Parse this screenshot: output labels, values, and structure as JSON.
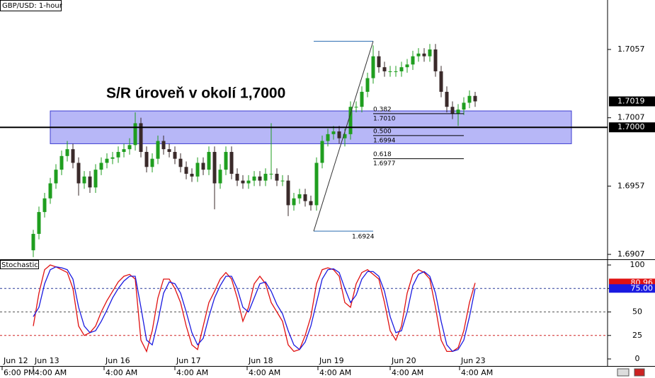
{
  "chart_data": [
    {
      "type": "candlestick",
      "title": "GBP/USD: 1-hour",
      "annotation": "S/R úroveň v okolí 1,7000",
      "up_color": "#1f9e1f",
      "down_color": "#3a2a2a",
      "open": [
        1.691,
        1.6922,
        1.6938,
        1.6948,
        1.6959,
        1.6969,
        1.6979,
        1.6984,
        1.6974,
        1.6959,
        1.6964,
        1.6956,
        1.6969,
        1.6974,
        1.6977,
        1.6978,
        1.6982,
        1.6984,
        1.6987,
        1.7003,
        1.6982,
        1.6971,
        1.6977,
        1.699,
        1.6984,
        1.6982,
        1.6977,
        1.6971,
        1.6966,
        1.6964,
        1.6974,
        1.6969,
        1.6982,
        1.6959,
        1.6969,
        1.6982,
        1.6966,
        1.6961,
        1.6959,
        1.6961,
        1.6964,
        1.6961,
        1.6966,
        1.6966,
        1.6961,
        1.6961,
        1.6943,
        1.6948,
        1.6951,
        1.6946,
        1.6943,
        1.6974,
        1.699,
        1.6995,
        1.6997,
        1.6992,
        1.6995,
        1.7015,
        1.7015,
        1.7026,
        1.7036,
        1.7052,
        1.7044,
        1.7041,
        1.7041,
        1.7041,
        1.7044,
        1.7046,
        1.7052,
        1.7054,
        1.7052,
        1.7057,
        1.7041,
        1.7026,
        1.7015,
        1.701,
        1.7013,
        1.7018,
        1.7023
      ],
      "high": [
        1.6925,
        1.6942,
        1.6952,
        1.6963,
        1.6973,
        1.6983,
        1.699,
        1.6988,
        1.6978,
        1.6968,
        1.6968,
        1.6973,
        1.6978,
        1.6981,
        1.6982,
        1.6986,
        1.6988,
        1.6992,
        1.7011,
        1.7007,
        1.6986,
        1.6981,
        1.6994,
        1.6994,
        1.6988,
        1.6986,
        1.6981,
        1.6975,
        1.697,
        1.6978,
        1.6978,
        1.6986,
        1.6986,
        1.6973,
        1.6986,
        1.6986,
        1.697,
        1.6965,
        1.6965,
        1.6968,
        1.6968,
        1.697,
        1.7003,
        1.697,
        1.6965,
        1.6965,
        1.6952,
        1.6955,
        1.6955,
        1.695,
        1.6978,
        1.6994,
        1.6999,
        1.7001,
        1.7001,
        1.6999,
        1.7019,
        1.7019,
        1.703,
        1.704,
        1.706,
        1.7056,
        1.7048,
        1.7045,
        1.7045,
        1.7048,
        1.705,
        1.7056,
        1.7058,
        1.7058,
        1.7061,
        1.7061,
        1.7045,
        1.703,
        1.7019,
        1.7017,
        1.7022,
        1.7027,
        1.7026
      ],
      "low": [
        1.6905,
        1.6918,
        1.6934,
        1.6944,
        1.6955,
        1.6965,
        1.6975,
        1.697,
        1.695,
        1.6955,
        1.6952,
        1.6952,
        1.6965,
        1.697,
        1.6973,
        1.6974,
        1.6978,
        1.698,
        1.6983,
        1.6978,
        1.6967,
        1.6967,
        1.6973,
        1.698,
        1.6978,
        1.6973,
        1.6967,
        1.6962,
        1.696,
        1.696,
        1.6965,
        1.6965,
        1.694,
        1.6955,
        1.6965,
        1.6962,
        1.6957,
        1.6955,
        1.6955,
        1.6957,
        1.6957,
        1.6957,
        1.6962,
        1.6957,
        1.6957,
        1.6935,
        1.6939,
        1.6944,
        1.6942,
        1.6939,
        1.6939,
        1.697,
        1.6986,
        1.6991,
        1.6988,
        1.6986,
        1.6991,
        1.7011,
        1.7011,
        1.7022,
        1.7032,
        1.704,
        1.7037,
        1.7037,
        1.7037,
        1.7037,
        1.704,
        1.7042,
        1.7048,
        1.7048,
        1.7048,
        1.7037,
        1.7022,
        1.7011,
        1.7006,
        1.7001,
        1.7009,
        1.7014,
        1.7015
      ],
      "close": [
        1.6922,
        1.6938,
        1.6948,
        1.6959,
        1.6969,
        1.6979,
        1.6984,
        1.6974,
        1.6959,
        1.6964,
        1.6956,
        1.6969,
        1.6974,
        1.6977,
        1.6978,
        1.6982,
        1.6984,
        1.6987,
        1.7003,
        1.6982,
        1.6971,
        1.6977,
        1.699,
        1.6984,
        1.6982,
        1.6977,
        1.6971,
        1.6966,
        1.6964,
        1.6974,
        1.6969,
        1.6982,
        1.6959,
        1.6969,
        1.6982,
        1.6966,
        1.6961,
        1.6959,
        1.6961,
        1.6964,
        1.6961,
        1.6966,
        1.6966,
        1.6961,
        1.6961,
        1.6943,
        1.6948,
        1.6951,
        1.6946,
        1.6943,
        1.6974,
        1.699,
        1.6995,
        1.6997,
        1.6992,
        1.6995,
        1.7015,
        1.7015,
        1.7026,
        1.7036,
        1.7052,
        1.7044,
        1.7041,
        1.7041,
        1.7041,
        1.7044,
        1.7046,
        1.7052,
        1.7054,
        1.7052,
        1.7057,
        1.7041,
        1.7026,
        1.7015,
        1.701,
        1.7013,
        1.7018,
        1.7023,
        1.7019
      ],
      "xlim": [
        -5.875,
        101.375
      ],
      "ylim": [
        1.69034,
        1.70932
      ],
      "yticks": [
        1.7057,
        1.7007,
        1.6957,
        1.6907
      ],
      "hline": {
        "value": 1.7,
        "label": "1.7000",
        "color": "#000000"
      },
      "zone": {
        "low": 1.6988,
        "high": 1.7012,
        "start_index": 3,
        "end_index": 95,
        "color": "#7c7cf0"
      },
      "fib": {
        "start_index": 49.5,
        "end_index": 60,
        "levels_end_index": 76,
        "low": 1.6924,
        "high": 1.7063,
        "color": "#2a6cb0",
        "levels": [
          {
            "ratio": 0.382,
            "price": {
              "value": 1.701,
              "label": "1.7010"
            }
          },
          {
            "ratio": {
              "value": 0.5,
              "label": "0.500"
            },
            "price": 1.6994
          },
          {
            "ratio": 0.618,
            "price": 1.6977
          }
        ]
      }
    },
    {
      "type": "line",
      "title": "Stochastic",
      "series": [
        {
          "color": "#e01010",
          "last_label": "80.96",
          "values": [
            35,
            70,
            95,
            100,
            98,
            95,
            92,
            75,
            35,
            25,
            28,
            35,
            50,
            62,
            72,
            82,
            88,
            90,
            85,
            20,
            8,
            30,
            65,
            85,
            85,
            75,
            60,
            35,
            15,
            10,
            35,
            60,
            72,
            85,
            92,
            85,
            65,
            40,
            55,
            80,
            88,
            80,
            60,
            50,
            40,
            15,
            8,
            10,
            25,
            45,
            80,
            95,
            97,
            95,
            88,
            60,
            55,
            80,
            92,
            95,
            90,
            85,
            60,
            30,
            20,
            35,
            70,
            90,
            95,
            92,
            85,
            55,
            20,
            8,
            8,
            12,
            30,
            60,
            80.96
          ]
        },
        {
          "color": "#1a1ae0",
          "last_label": "75.00",
          "values": [
            45,
            55,
            80,
            95,
            98,
            97,
            95,
            85,
            55,
            35,
            28,
            30,
            40,
            52,
            65,
            75,
            83,
            88,
            88,
            55,
            20,
            15,
            40,
            70,
            82,
            80,
            70,
            50,
            28,
            15,
            22,
            45,
            65,
            78,
            88,
            88,
            75,
            55,
            50,
            65,
            80,
            82,
            72,
            58,
            48,
            30,
            15,
            10,
            18,
            35,
            60,
            85,
            95,
            96,
            92,
            75,
            60,
            68,
            85,
            93,
            93,
            88,
            72,
            45,
            28,
            30,
            50,
            78,
            90,
            93,
            88,
            70,
            40,
            15,
            8,
            10,
            20,
            45,
            75
          ]
        }
      ],
      "xlim": [
        -5.875,
        101.375
      ],
      "ylim": [
        -7.5,
        105.3
      ],
      "yticks": [
        100,
        75,
        50,
        25,
        0
      ],
      "levels": [
        {
          "value": 75,
          "color": "#2a3a9a"
        },
        {
          "value": 50,
          "color": "#555555"
        },
        {
          "value": 25,
          "color": "#d02020"
        }
      ],
      "xticks": [
        {
          "value": -5.5,
          "label": "Jun 12"
        },
        {
          "value": 0,
          "label": "Jun 13"
        },
        {
          "value": 12.5,
          "label": "Jun 16"
        },
        {
          "value": 25,
          "label": "Jun 17"
        },
        {
          "value": 37.75,
          "label": "Jun 18"
        },
        {
          "value": 50.25,
          "label": "Jun 19"
        },
        {
          "value": 63,
          "label": "Jun 20"
        },
        {
          "value": 75.25,
          "label": "Jun 23"
        }
      ],
      "xticks_time": [
        {
          "value": -5.5,
          "label": "6:00 PM"
        },
        {
          "value": 0,
          "label": "4:00 AM"
        },
        {
          "value": 12.5,
          "label": "4:00 AM"
        },
        {
          "value": 25,
          "label": "4:00 AM"
        },
        {
          "value": 37.75,
          "label": "4:00 AM"
        },
        {
          "value": 50.25,
          "label": "4:00 AM"
        },
        {
          "value": 63,
          "label": "4:00 AM"
        },
        {
          "value": 75.25,
          "label": "4:00 AM"
        }
      ]
    }
  ]
}
